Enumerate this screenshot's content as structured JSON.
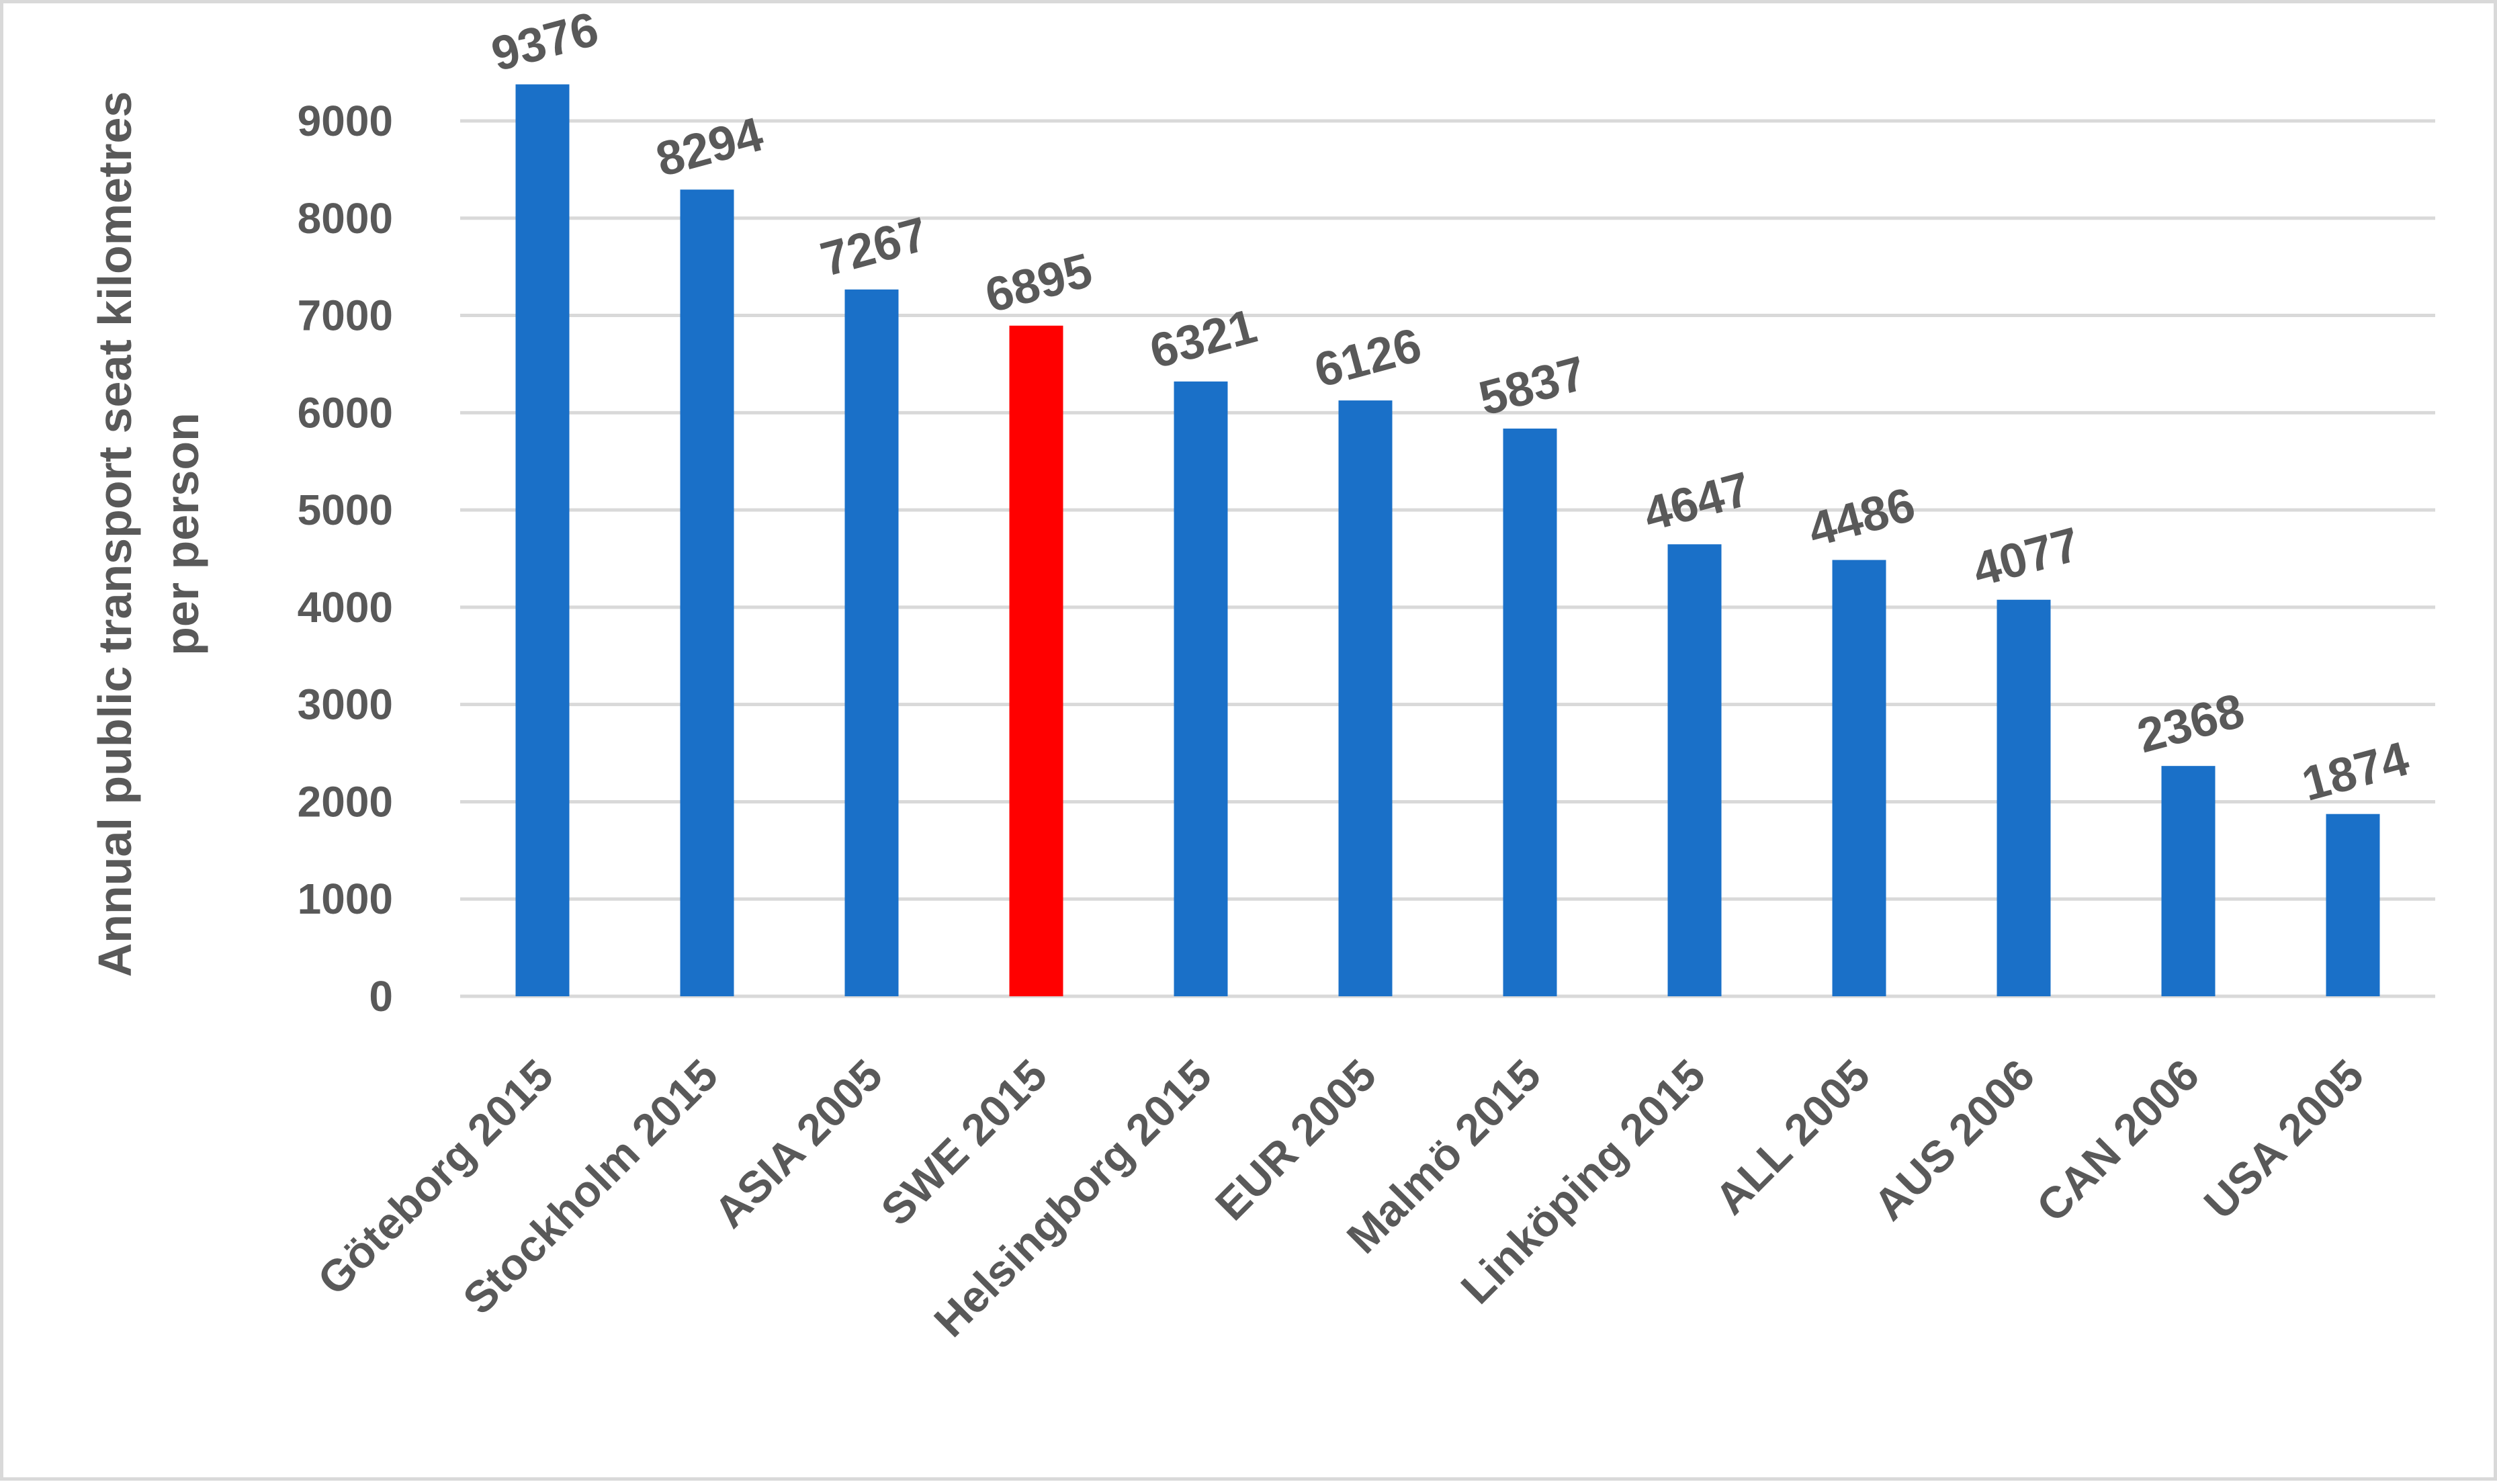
{
  "chart_data": {
    "type": "bar",
    "title": "",
    "xlabel": "",
    "ylabel_lines": [
      "Annual public transport seat kilometres",
      "per person"
    ],
    "categories": [
      "Göteborg 2015",
      "Stockholm 2015",
      "ASIA 2005",
      "SWE 2015",
      "Helsingborg 2015",
      "EUR 2005",
      "Malmö 2015",
      "Linköping 2015",
      "ALL 2005",
      "AUS 2006",
      "CAN 2006",
      "USA 2005"
    ],
    "values": [
      9376,
      8294,
      7267,
      6895,
      6321,
      6126,
      5837,
      4647,
      4486,
      4077,
      2368,
      1874
    ],
    "data_labels": [
      "9376",
      "8294",
      "7267",
      "6895",
      "6321",
      "6126",
      "5837",
      "4647",
      "4486",
      "4077",
      "2368",
      "1874"
    ],
    "ylim": [
      0,
      9000
    ],
    "yticks": [
      0,
      1000,
      2000,
      3000,
      4000,
      5000,
      6000,
      7000,
      8000,
      9000
    ],
    "ytick_labels": [
      "0",
      "1000",
      "2000",
      "3000",
      "4000",
      "5000",
      "6000",
      "7000",
      "8000",
      "9000"
    ],
    "grid": true,
    "legend": "none",
    "colors": {
      "default_bar": "#1a70c8",
      "highlight_bar": "#ff0000",
      "highlight_category": "SWE 2015",
      "gridline": "#d9d9d9",
      "text": "#595959"
    }
  }
}
